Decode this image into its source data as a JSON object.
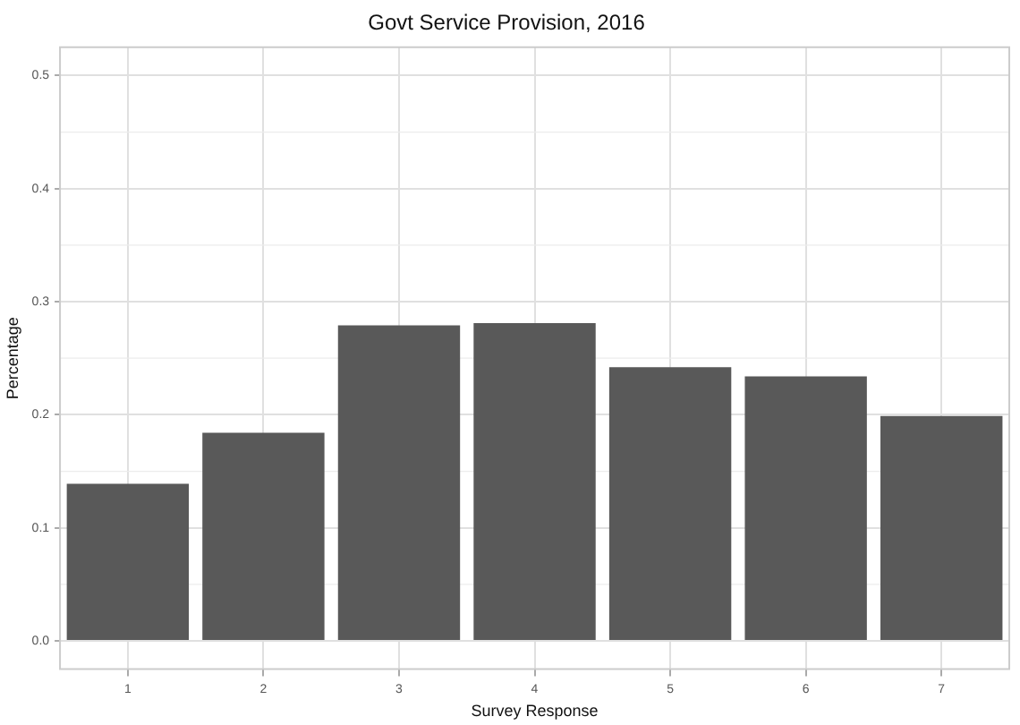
{
  "chart_data": {
    "type": "bar",
    "title": "Govt Service Provision, 2016",
    "xlabel": "Survey Response",
    "ylabel": "Percentage",
    "categories": [
      "1",
      "2",
      "3",
      "4",
      "5",
      "6",
      "7"
    ],
    "values": [
      0.139,
      0.184,
      0.279,
      0.281,
      0.242,
      0.234,
      0.199
    ],
    "color": "#595959",
    "ylim": [
      -0.025,
      0.525
    ],
    "yticks": [
      {
        "value": 0,
        "label": "0.0"
      },
      {
        "value": 0.1,
        "label": "0.1"
      },
      {
        "value": 0.2,
        "label": "0.2"
      },
      {
        "value": 0.3,
        "label": "0.3"
      },
      {
        "value": 0.4,
        "label": "0.4"
      },
      {
        "value": 0.5,
        "label": "0.5"
      }
    ],
    "grid": true,
    "legend": false
  }
}
